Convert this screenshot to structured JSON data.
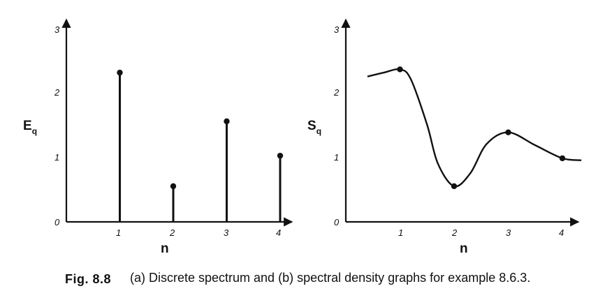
{
  "chart_data": [
    {
      "type": "stem",
      "ylabel": "E",
      "ylabel_subscript": "q",
      "xlabel": "n",
      "x_ticks": [
        "1",
        "2",
        "3",
        "4"
      ],
      "y_ticks": [
        "0",
        "1",
        "2",
        "3"
      ],
      "xlim": [
        0,
        4.2
      ],
      "ylim": [
        0,
        3
      ],
      "x": [
        1,
        2,
        3,
        4
      ],
      "values": [
        2.3,
        0.55,
        1.55,
        1.02
      ]
    },
    {
      "type": "line",
      "ylabel": "S",
      "ylabel_subscript": "q",
      "xlabel": "n",
      "x_ticks": [
        "1",
        "2",
        "3",
        "4"
      ],
      "y_ticks": [
        "0",
        "1",
        "2",
        "3"
      ],
      "xlim": [
        0,
        4.2
      ],
      "ylim": [
        0,
        3
      ],
      "curve": [
        [
          0.4,
          2.24
        ],
        [
          0.7,
          2.3
        ],
        [
          1.0,
          2.35
        ],
        [
          1.2,
          2.2
        ],
        [
          1.5,
          1.5
        ],
        [
          1.7,
          0.9
        ],
        [
          2.0,
          0.55
        ],
        [
          2.3,
          0.75
        ],
        [
          2.6,
          1.2
        ],
        [
          3.0,
          1.38
        ],
        [
          3.5,
          1.18
        ],
        [
          4.0,
          0.98
        ],
        [
          4.35,
          0.95
        ]
      ],
      "points": [
        [
          1,
          2.35
        ],
        [
          2,
          0.55
        ],
        [
          3,
          1.38
        ],
        [
          4,
          0.98
        ]
      ]
    }
  ],
  "caption": {
    "label": "Fig. 8.8",
    "text": "(a) Discrete spectrum and (b) spectral density graphs for example 8.6.3."
  }
}
